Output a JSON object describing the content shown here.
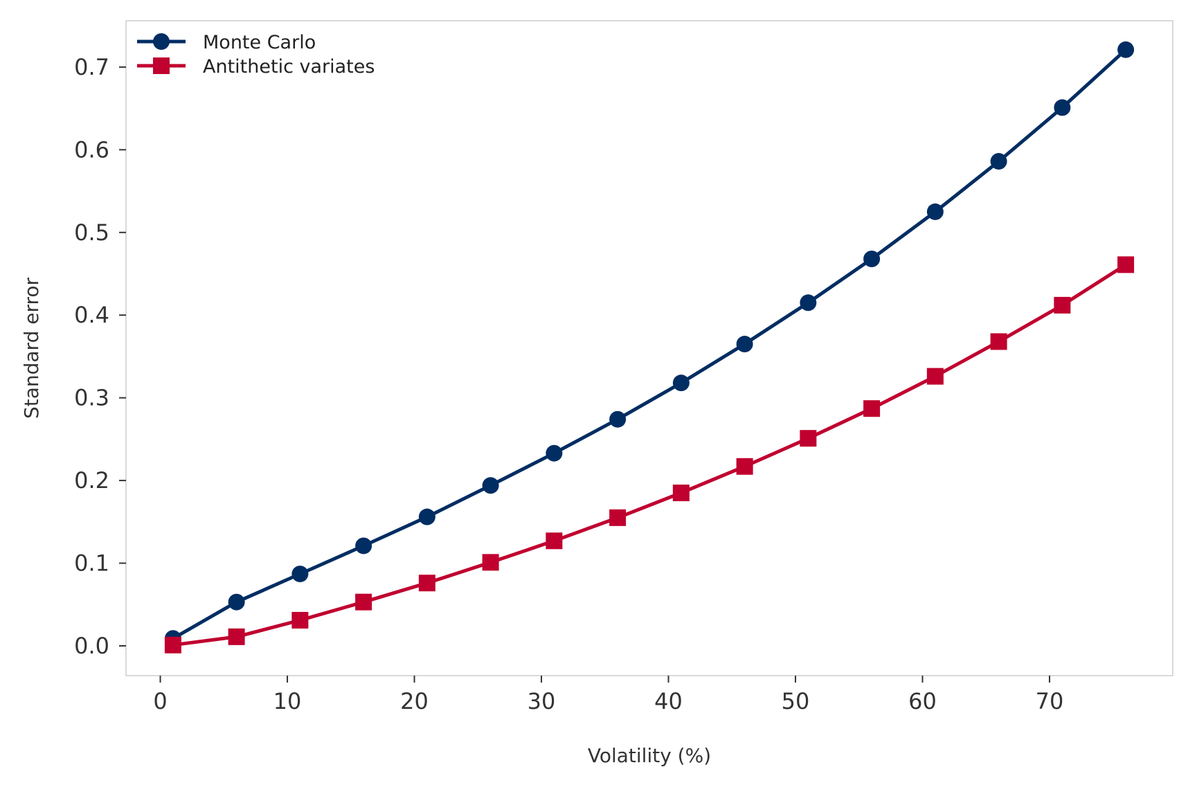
{
  "chart_data": {
    "type": "line",
    "title": "",
    "xlabel": "Volatility (%)",
    "ylabel": "Standard error",
    "xlim": [
      -2.7,
      79.7
    ],
    "ylim": [
      -0.036,
      0.756
    ],
    "xticks": [
      0,
      10,
      20,
      30,
      40,
      50,
      60,
      70
    ],
    "yticks": [
      0.0,
      0.1,
      0.2,
      0.3,
      0.4,
      0.5,
      0.6,
      0.7
    ],
    "ytick_labels": [
      "0.0",
      "0.1",
      "0.2",
      "0.3",
      "0.4",
      "0.5",
      "0.6",
      "0.7"
    ],
    "grid": false,
    "legend_position": "top-left",
    "x": [
      1,
      6,
      11,
      16,
      21,
      26,
      31,
      36,
      41,
      46,
      51,
      56,
      61,
      66,
      71,
      76
    ],
    "series": [
      {
        "name": "Monte Carlo",
        "marker": "circle",
        "color": "#002D62",
        "values": [
          0.009,
          0.053,
          0.087,
          0.121,
          0.156,
          0.194,
          0.233,
          0.274,
          0.318,
          0.365,
          0.415,
          0.468,
          0.525,
          0.586,
          0.651,
          0.721
        ]
      },
      {
        "name": "Antithetic variates",
        "marker": "square",
        "color": "#C0002F",
        "values": [
          0.001,
          0.011,
          0.031,
          0.053,
          0.076,
          0.101,
          0.127,
          0.155,
          0.185,
          0.217,
          0.251,
          0.287,
          0.326,
          0.368,
          0.412,
          0.461
        ]
      }
    ],
    "frame_color": "#D9D9D9",
    "text_color": "#333333"
  }
}
